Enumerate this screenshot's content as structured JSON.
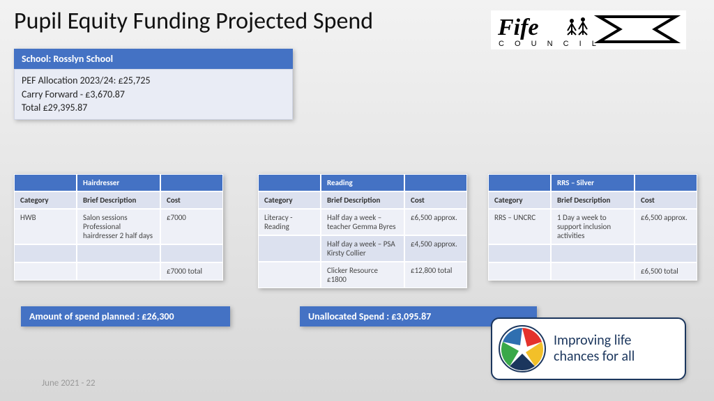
{
  "title": "Pupil Equity Funding Projected Spend",
  "school_header": "School:  Rosslyn School",
  "allocation_lines": {
    "l1": "PEF Allocation 2023/24:  £25,725",
    "l2": "Carry Forward - £3,670.87",
    "l3": "Total £29,395.87"
  },
  "tables": [
    {
      "title": "Hairdresser",
      "headers": [
        "Category",
        "Brief Description",
        "Cost"
      ],
      "rows": [
        [
          "HWB",
          "Salon sessions Professional hairdresser 2 half days",
          "£7000"
        ],
        [
          "",
          "",
          ""
        ],
        [
          "",
          "",
          "£7000 total"
        ]
      ]
    },
    {
      "title": "Reading",
      "headers": [
        "Category",
        "Brief Description",
        "Cost"
      ],
      "rows": [
        [
          "Literacy - Reading",
          "Half day a week – teacher Gemma Byres",
          "£6,500 approx."
        ],
        [
          "",
          "Half day a week – PSA Kirsty Collier",
          "£4,500 approx."
        ],
        [
          "",
          "Clicker Resource £1800",
          "£12,800 total"
        ]
      ]
    },
    {
      "title": "RRS – Silver",
      "headers": [
        "Category",
        "Brief Description",
        "Cost"
      ],
      "rows": [
        [
          "RRS – UNCRC",
          "1 Day a week to support inclusion activities",
          "£6,500 approx."
        ],
        [
          "",
          "",
          ""
        ],
        [
          "",
          "",
          "£6,500 total"
        ]
      ]
    }
  ],
  "spend_planned": "Amount of spend planned :  £26,300",
  "unallocated": "Unallocated Spend : £3,095.87",
  "footer_date": "June 2021 - 22",
  "logo_fife_text": "Fife",
  "logo_fife_sub": "C O U N C I L",
  "logo_improving_l1": "Improving life",
  "logo_improving_l2": "chances for all",
  "colors": {
    "header_blue": "#4472c4",
    "light_blue": "#e9ecf5",
    "mid_blue": "#dce1ef"
  }
}
